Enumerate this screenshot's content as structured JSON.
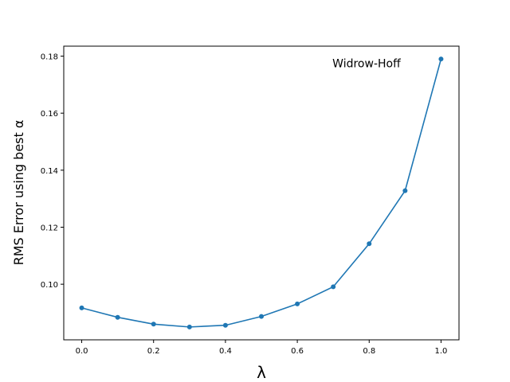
{
  "chart_data": {
    "type": "line",
    "title": "",
    "xlabel": "λ",
    "ylabel": "RMS Error using best α",
    "xlim": [
      -0.05,
      1.05
    ],
    "ylim": [
      0.0805,
      0.1835
    ],
    "xticks": [
      0.0,
      0.2,
      0.4,
      0.6,
      0.8,
      1.0
    ],
    "xtick_labels": [
      "0.0",
      "0.2",
      "0.4",
      "0.6",
      "0.8",
      "1.0"
    ],
    "yticks": [
      0.1,
      0.12,
      0.14,
      0.16,
      0.18
    ],
    "ytick_labels": [
      "0.10",
      "0.12",
      "0.14",
      "0.16",
      "0.18"
    ],
    "grid": false,
    "legend": "none",
    "annotation": {
      "text": "Widrow-Hoff",
      "x": 0.7,
      "y": 0.1775
    },
    "series": [
      {
        "color": "#1f77b4",
        "marker": "circle",
        "x": [
          0.0,
          0.1,
          0.2,
          0.3,
          0.4,
          0.5,
          0.6,
          0.7,
          0.8,
          0.9,
          1.0
        ],
        "y": [
          0.0917,
          0.0884,
          0.086,
          0.085,
          0.0856,
          0.0887,
          0.0931,
          0.0991,
          0.1142,
          0.1328,
          0.179
        ]
      }
    ]
  }
}
